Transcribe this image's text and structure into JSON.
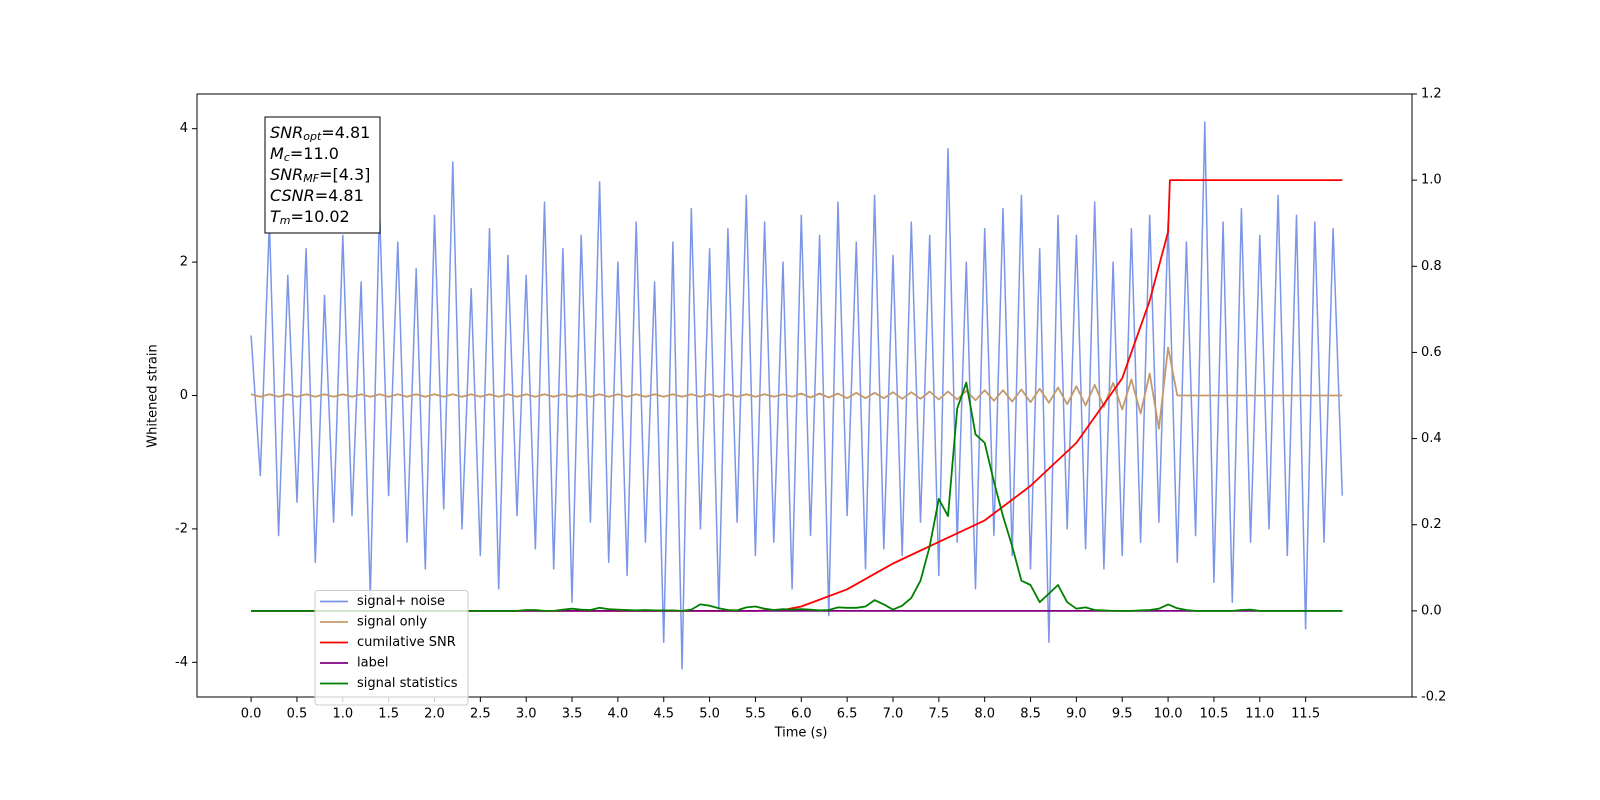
{
  "chart_data": {
    "type": "line",
    "xlabel": "Time (s)",
    "ylabel": "Whitened strain",
    "xlim": [
      -0.59,
      12.66
    ],
    "ylim": [
      -4.52,
      4.52
    ],
    "y2lim": [
      -0.2,
      1.2
    ],
    "xticks": [
      {
        "value": 0,
        "label": "0.0"
      },
      0.5,
      {
        "value": 1,
        "label": "1.0"
      },
      1.5,
      {
        "value": 2,
        "label": "2.0"
      },
      2.5,
      {
        "value": 3,
        "label": "3.0"
      },
      3.5,
      {
        "value": 4,
        "label": "4.0"
      },
      4.5,
      {
        "value": 5,
        "label": "5.0"
      },
      5.5,
      {
        "value": 6,
        "label": "6.0"
      },
      6.5,
      {
        "value": 7,
        "label": "7.0"
      },
      7.5,
      {
        "value": 8,
        "label": "8.0"
      },
      8.5,
      {
        "value": 9,
        "label": "9.0"
      },
      9.5,
      {
        "value": 10,
        "label": "10.0"
      },
      10.5,
      {
        "value": 11,
        "label": "11.0"
      },
      11.5
    ],
    "yticks": [
      -4,
      -2,
      0,
      2,
      4
    ],
    "y2ticks": [
      -0.2,
      {
        "value": 0,
        "label": "0.0"
      },
      0.2,
      0.4,
      0.6,
      0.8,
      {
        "value": 1,
        "label": "1.0"
      },
      1.2
    ],
    "legend": "lower left",
    "annotation": [
      {
        "symbol": "SNR",
        "subscript": "opt",
        "text": "=4.81"
      },
      {
        "symbol": "M",
        "subscript": "c",
        "text": "=11.0"
      },
      {
        "symbol": "SNR",
        "subscript": "MF",
        "text": "=[4.3]"
      },
      {
        "symbol": "CSNR",
        "subscript": "",
        "text": "=4.81"
      },
      {
        "symbol": "T",
        "subscript": "m",
        "text": "=10.02"
      }
    ],
    "x": [
      0,
      0.1,
      0.2,
      0.3,
      0.4,
      0.5,
      0.6,
      0.7,
      0.8,
      0.9,
      1,
      1.1,
      1.2,
      1.3,
      1.4,
      1.5,
      1.6,
      1.7,
      1.8,
      1.9,
      2,
      2.1,
      2.2,
      2.3,
      2.4,
      2.5,
      2.6,
      2.7,
      2.8,
      2.9,
      3,
      3.1,
      3.2,
      3.3,
      3.4,
      3.5,
      3.6,
      3.7,
      3.8,
      3.9,
      4,
      4.1,
      4.2,
      4.3,
      4.4,
      4.5,
      4.6,
      4.7,
      4.8,
      4.9,
      5,
      5.1,
      5.2,
      5.3,
      5.4,
      5.5,
      5.6,
      5.7,
      5.8,
      5.9,
      6,
      6.1,
      6.2,
      6.3,
      6.4,
      6.5,
      6.6,
      6.7,
      6.8,
      6.9,
      7,
      7.1,
      7.2,
      7.3,
      7.4,
      7.5,
      7.6,
      7.7,
      7.8,
      7.9,
      8,
      8.1,
      8.2,
      8.3,
      8.4,
      8.5,
      8.6,
      8.7,
      8.8,
      8.9,
      9,
      9.1,
      9.2,
      9.3,
      9.4,
      9.5,
      9.6,
      9.7,
      9.8,
      9.9,
      10,
      10.1,
      10.2,
      10.3,
      10.4,
      10.5,
      10.6,
      10.7,
      10.8,
      10.9,
      11,
      11.1,
      11.2,
      11.3,
      11.4,
      11.5,
      11.6,
      11.7,
      11.8,
      11.9
    ],
    "series": [
      {
        "name": "signal+ noise",
        "color": "#7b96e8",
        "values": [
          0.9,
          -1.2,
          2.6,
          -2.1,
          1.8,
          -1.6,
          2.2,
          -2.5,
          1.5,
          -1.9,
          2.4,
          -1.8,
          1.7,
          -3.0,
          2.8,
          -1.5,
          2.3,
          -2.2,
          1.9,
          -2.6,
          2.7,
          -1.7,
          3.5,
          -2.0,
          1.6,
          -2.4,
          2.5,
          -2.9,
          2.1,
          -1.8,
          1.8,
          -2.3,
          2.9,
          -2.6,
          2.2,
          -3.1,
          2.4,
          -1.9,
          3.2,
          -2.5,
          2.0,
          -2.7,
          2.6,
          -2.2,
          1.7,
          -3.7,
          2.3,
          -4.1,
          2.8,
          -2.0,
          2.2,
          -3.2,
          2.5,
          -1.9,
          3.0,
          -2.4,
          2.6,
          -2.2,
          2.0,
          -2.9,
          2.7,
          -2.1,
          2.4,
          -3.3,
          2.9,
          -1.8,
          2.3,
          -2.6,
          3.0,
          -2.3,
          2.1,
          -2.4,
          2.6,
          -1.9,
          2.4,
          -2.7,
          3.7,
          -2.2,
          2.0,
          -2.9,
          2.5,
          -2.1,
          2.8,
          -2.4,
          3.0,
          -2.6,
          2.2,
          -3.7,
          2.7,
          -2.0,
          2.4,
          -2.3,
          2.9,
          -2.6,
          2.0,
          -2.4,
          2.5,
          -2.2,
          2.7,
          -1.9,
          2.6,
          -2.5,
          2.3,
          -2.1,
          4.1,
          -2.8,
          2.6,
          -3.1,
          2.8,
          -2.2,
          2.4,
          -2.0,
          3.0,
          -2.4,
          2.7,
          -3.5,
          2.6,
          -2.2,
          2.5,
          -1.5
        ]
      },
      {
        "name": "signal only",
        "color": "#c49a6c",
        "values": [
          0.02,
          -0.02,
          0.02,
          -0.02,
          0.02,
          -0.02,
          0.02,
          -0.02,
          0.02,
          -0.02,
          0.02,
          -0.02,
          0.02,
          -0.02,
          0.02,
          -0.02,
          0.02,
          -0.02,
          0.02,
          -0.02,
          0.02,
          -0.02,
          0.02,
          -0.02,
          0.02,
          -0.02,
          0.02,
          -0.02,
          0.02,
          -0.02,
          0.02,
          -0.02,
          0.02,
          -0.02,
          0.02,
          -0.02,
          0.02,
          -0.02,
          0.02,
          -0.02,
          0.02,
          -0.02,
          0.02,
          -0.02,
          0.02,
          -0.02,
          0.02,
          -0.02,
          0.02,
          -0.02,
          0.02,
          -0.02,
          0.02,
          -0.02,
          0.02,
          -0.02,
          0.02,
          -0.02,
          0.02,
          -0.02,
          0.03,
          -0.03,
          0.03,
          -0.03,
          0.03,
          -0.04,
          0.04,
          -0.04,
          0.04,
          -0.04,
          0.05,
          -0.05,
          0.05,
          -0.05,
          0.06,
          -0.06,
          0.06,
          -0.06,
          0.07,
          -0.07,
          0.08,
          -0.08,
          0.08,
          -0.09,
          0.09,
          -0.1,
          0.1,
          -0.11,
          0.12,
          -0.13,
          0.14,
          -0.15,
          0.16,
          -0.17,
          0.19,
          -0.21,
          0.24,
          -0.27,
          0.33,
          -0.5,
          0.72,
          0,
          0,
          0,
          0,
          0,
          0,
          0,
          0,
          0,
          0,
          0,
          0,
          0,
          0,
          0,
          0,
          0,
          0,
          0
        ]
      },
      {
        "name": "cumilative SNR",
        "color": "#ff0000",
        "axis": "y2",
        "x": [
          0,
          5.5,
          5.8,
          6.0,
          6.5,
          7.0,
          7.5,
          8.0,
          8.5,
          9.0,
          9.5,
          9.8,
          10.0,
          10.02,
          11.9
        ],
        "values": [
          0,
          0,
          0.002,
          0.01,
          0.05,
          0.11,
          0.16,
          0.21,
          0.29,
          0.39,
          0.54,
          0.72,
          0.88,
          1.0,
          1.0
        ]
      },
      {
        "name": "label",
        "color": "#800080",
        "axis": "y2",
        "x": [
          0,
          11.9
        ],
        "values": [
          0,
          0
        ]
      },
      {
        "name": "signal statistics",
        "color": "#008000",
        "axis": "y2",
        "values": [
          0,
          0,
          0,
          0,
          0,
          0,
          0,
          0,
          0,
          0,
          0,
          0,
          0,
          0,
          0,
          0,
          0,
          0,
          0,
          0,
          0,
          0,
          0,
          0,
          0,
          0,
          0,
          0,
          0,
          0,
          0.002,
          0.002,
          0,
          0,
          0.003,
          0.005,
          0.003,
          0.002,
          0.007,
          0.004,
          0.003,
          0.002,
          0.001,
          0.002,
          0.001,
          0.001,
          0.001,
          0,
          0.003,
          0.015,
          0.012,
          0.006,
          0.002,
          0.001,
          0.008,
          0.01,
          0.005,
          0.002,
          0.004,
          0.003,
          0.004,
          0.003,
          0.001,
          0.002,
          0.008,
          0.007,
          0.007,
          0.01,
          0.025,
          0.015,
          0.003,
          0.012,
          0.03,
          0.07,
          0.15,
          0.26,
          0.22,
          0.47,
          0.53,
          0.41,
          0.39,
          0.3,
          0.22,
          0.15,
          0.07,
          0.06,
          0.02,
          0.04,
          0.06,
          0.02,
          0.005,
          0.008,
          0.002,
          0.001,
          0,
          0,
          0,
          0.001,
          0.002,
          0.005,
          0.015,
          0.006,
          0.002,
          0,
          0,
          0,
          0,
          0,
          0.002,
          0.003,
          0,
          0,
          0,
          0,
          0,
          0,
          0,
          0,
          0,
          0
        ]
      }
    ]
  }
}
